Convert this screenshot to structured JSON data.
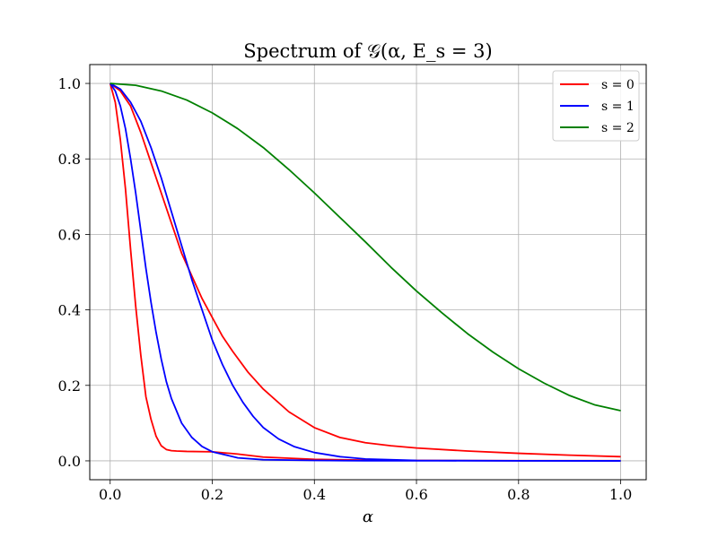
{
  "chart_data": {
    "type": "line",
    "title": "Spectrum of 𝒢(α, E_s = 3)",
    "xlabel": "α",
    "ylabel": "",
    "xlim": [
      -0.04,
      1.05
    ],
    "ylim": [
      -0.05,
      1.05
    ],
    "xticks": [
      0.0,
      0.2,
      0.4,
      0.6,
      0.8,
      1.0
    ],
    "xtick_labels": [
      "0.0",
      "0.2",
      "0.4",
      "0.6",
      "0.8",
      "1.0"
    ],
    "yticks": [
      0.0,
      0.2,
      0.4,
      0.6,
      0.8,
      1.0
    ],
    "ytick_labels": [
      "0.0",
      "0.2",
      "0.4",
      "0.6",
      "0.8",
      "1.0"
    ],
    "grid": true,
    "legend_position": "top-right",
    "legend": [
      {
        "label": "s = 0",
        "color": "#ff0000"
      },
      {
        "label": "s = 1",
        "color": "#0000ff"
      },
      {
        "label": "s = 2",
        "color": "#008000"
      }
    ],
    "series": [
      {
        "legend_index": 0,
        "color": "#ff0000",
        "x": [
          0.0,
          0.01,
          0.02,
          0.03,
          0.04,
          0.05,
          0.06,
          0.07,
          0.08,
          0.09,
          0.1,
          0.11,
          0.12,
          0.13,
          0.15,
          0.2,
          0.25,
          0.3,
          0.4,
          0.5,
          0.6,
          0.8,
          1.0
        ],
        "y": [
          1.0,
          0.95,
          0.85,
          0.72,
          0.56,
          0.41,
          0.28,
          0.17,
          0.11,
          0.065,
          0.04,
          0.03,
          0.027,
          0.026,
          0.025,
          0.024,
          0.018,
          0.01,
          0.004,
          0.002,
          0.001,
          0.0005,
          0.0003
        ]
      },
      {
        "legend_index": 0,
        "color": "#ff0000",
        "x": [
          0.0,
          0.02,
          0.04,
          0.06,
          0.08,
          0.1,
          0.12,
          0.14,
          0.16,
          0.18,
          0.2,
          0.22,
          0.24,
          0.27,
          0.3,
          0.35,
          0.4,
          0.45,
          0.5,
          0.55,
          0.6,
          0.7,
          0.8,
          0.9,
          1.0
        ],
        "y": [
          1.0,
          0.98,
          0.94,
          0.87,
          0.79,
          0.71,
          0.63,
          0.55,
          0.49,
          0.43,
          0.38,
          0.33,
          0.29,
          0.235,
          0.19,
          0.13,
          0.088,
          0.062,
          0.048,
          0.04,
          0.034,
          0.026,
          0.02,
          0.015,
          0.011
        ]
      },
      {
        "legend_index": 1,
        "color": "#0000ff",
        "x": [
          0.0,
          0.01,
          0.02,
          0.03,
          0.04,
          0.05,
          0.06,
          0.07,
          0.08,
          0.09,
          0.1,
          0.11,
          0.12,
          0.14,
          0.16,
          0.18,
          0.2,
          0.25,
          0.3,
          0.4,
          0.5,
          0.6,
          0.8,
          1.0
        ],
        "y": [
          1.0,
          0.98,
          0.94,
          0.88,
          0.8,
          0.71,
          0.61,
          0.51,
          0.42,
          0.34,
          0.27,
          0.21,
          0.165,
          0.1,
          0.062,
          0.038,
          0.024,
          0.008,
          0.003,
          0.001,
          0.0004,
          0.0002,
          0.0001,
          0.0
        ]
      },
      {
        "legend_index": 1,
        "color": "#0000ff",
        "x": [
          0.0,
          0.02,
          0.04,
          0.06,
          0.08,
          0.1,
          0.12,
          0.14,
          0.16,
          0.18,
          0.2,
          0.22,
          0.24,
          0.26,
          0.28,
          0.3,
          0.33,
          0.36,
          0.4,
          0.45,
          0.5,
          0.6,
          0.8,
          1.0
        ],
        "y": [
          1.0,
          0.985,
          0.95,
          0.9,
          0.83,
          0.75,
          0.66,
          0.57,
          0.48,
          0.4,
          0.32,
          0.255,
          0.2,
          0.155,
          0.118,
          0.088,
          0.058,
          0.038,
          0.022,
          0.011,
          0.005,
          0.001,
          0.0002,
          0.0
        ]
      },
      {
        "legend_index": 2,
        "color": "#008000",
        "x": [
          0.0,
          0.05,
          0.1,
          0.15,
          0.2,
          0.25,
          0.3,
          0.35,
          0.4,
          0.45,
          0.5,
          0.55,
          0.6,
          0.65,
          0.7,
          0.75,
          0.8,
          0.85,
          0.9,
          0.95,
          1.0
        ],
        "y": [
          1.0,
          0.995,
          0.98,
          0.956,
          0.922,
          0.88,
          0.83,
          0.772,
          0.71,
          0.645,
          0.58,
          0.513,
          0.45,
          0.392,
          0.337,
          0.288,
          0.244,
          0.206,
          0.173,
          0.148,
          0.133
        ]
      }
    ]
  }
}
